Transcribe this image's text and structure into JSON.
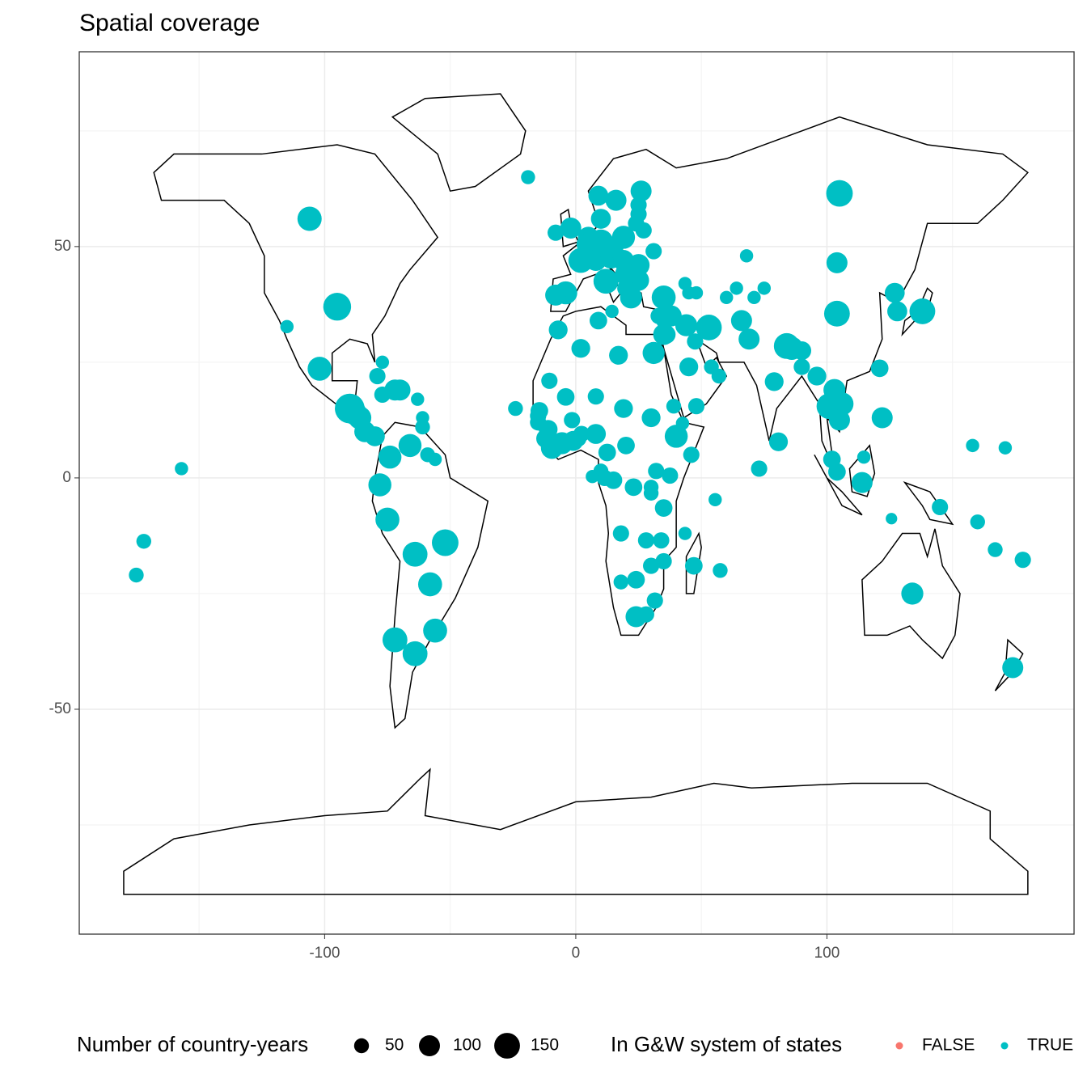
{
  "chart_data": {
    "type": "scatter",
    "title": "Spatial coverage",
    "xlim": [
      -197.7,
      198.4
    ],
    "ylim": [
      -98.6,
      92.1
    ],
    "xticks": [
      -100,
      0,
      100
    ],
    "yticks": [
      -50,
      0,
      50
    ],
    "grid": true,
    "size_legend": {
      "title": "Number of country-years",
      "values": [
        50,
        100,
        150
      ]
    },
    "color_legend": {
      "title": "In G&W system of states"
    },
    "series": [
      {
        "name": "FALSE",
        "color": "#F8766D",
        "x": [
          12
        ],
        "y": [
          48
        ],
        "size": [
          40
        ]
      },
      {
        "name": "TRUE",
        "color": "#00BFC4",
        "x": [
          -19,
          -106,
          -95,
          -102,
          -115,
          -157,
          -172,
          -175,
          -90,
          -86,
          -84,
          -80,
          -88,
          -79,
          -72,
          -70,
          -77,
          -77,
          -61,
          -63,
          -61,
          -74,
          -66,
          -59,
          -56,
          -78,
          -75,
          -64,
          -52,
          -58,
          -56,
          -72,
          -64,
          -2,
          -8,
          2,
          -4,
          -8,
          12,
          10,
          5,
          4.5,
          8,
          14,
          10,
          9,
          16,
          26,
          19,
          15,
          19,
          25,
          25,
          22,
          20,
          20,
          25,
          25,
          24,
          27,
          31,
          35,
          33,
          38,
          35.5,
          35,
          36,
          44,
          53,
          45,
          47.5,
          48,
          57,
          54,
          31,
          17,
          9,
          2,
          -7,
          14.4,
          43.5,
          45,
          48,
          68,
          60,
          64,
          71,
          75,
          66,
          69,
          79,
          84,
          86,
          90,
          90,
          96,
          80.7,
          73,
          101,
          103,
          106,
          105,
          102,
          104,
          114.7,
          114,
          122,
          121,
          104,
          104,
          105,
          127,
          128,
          138,
          145,
          125.7,
          160,
          167,
          178,
          174,
          134,
          158,
          171,
          57.5,
          47,
          43.5,
          55.5,
          -24,
          -14.5,
          -15,
          -15,
          -11,
          -12,
          -9.5,
          -5.5,
          -1,
          1,
          2.3,
          8,
          -4,
          -10.5,
          -1.5,
          8,
          19,
          30,
          40,
          39,
          42.5,
          46,
          20,
          12.5,
          10,
          11.5,
          15,
          23,
          32,
          37.5,
          30,
          30,
          35,
          18,
          28,
          34,
          35,
          30,
          24,
          18,
          24,
          28,
          31.5,
          6.6
        ],
        "y": [
          65,
          56,
          37,
          23.6,
          32.7,
          2,
          -13.7,
          -21,
          15,
          13,
          10,
          9,
          14,
          22,
          19,
          19,
          18,
          25,
          11,
          17,
          13,
          4.5,
          7,
          5,
          4,
          -1.5,
          -9,
          -16.5,
          -14,
          -23,
          -33,
          -35,
          -38,
          54,
          53,
          47,
          40,
          39.5,
          42.5,
          51,
          52,
          50.5,
          47,
          47.5,
          56,
          61,
          60,
          62,
          52,
          49.8,
          47,
          46,
          42.7,
          39,
          44,
          41,
          59,
          57,
          55,
          53.5,
          49,
          39,
          35,
          35,
          34,
          31,
          31,
          33,
          32.5,
          24,
          29.5,
          15.5,
          22,
          24,
          27,
          26.5,
          34,
          28,
          32,
          36,
          42,
          40,
          40,
          48,
          39,
          41,
          39,
          41,
          34,
          30,
          20.8,
          28.5,
          28,
          27.5,
          24,
          22,
          7.8,
          2,
          15.5,
          19,
          16,
          12.5,
          4,
          1.3,
          4.5,
          -1,
          13,
          23.7,
          35.5,
          46.5,
          61.5,
          40,
          36,
          36,
          -6.3,
          -8.8,
          -9.5,
          -15.5,
          -17.7,
          -41,
          -25,
          7,
          6.5,
          -20,
          -19,
          -12,
          -4.7,
          15,
          14.5,
          13.4,
          12,
          10.5,
          8.5,
          6.5,
          7.5,
          8,
          8.5,
          9.5,
          9.5,
          17.5,
          21,
          12.5,
          17.6,
          15,
          13,
          9,
          15.5,
          11.8,
          5,
          7,
          5.5,
          1.5,
          0,
          -0.5,
          -2,
          1.5,
          0.5,
          -2,
          -3.3,
          -6.5,
          -12,
          -13.5,
          -13.5,
          -18,
          -19,
          -22,
          -22.5,
          -30,
          -29.5,
          -26.5,
          0.3
        ],
        "size": [
          45,
          133,
          175,
          130,
          40,
          40,
          50,
          50,
          200,
          120,
          100,
          90,
          130,
          60,
          100,
          100,
          60,
          40,
          50,
          40,
          40,
          120,
          120,
          50,
          40,
          120,
          130,
          140,
          160,
          130,
          130,
          140,
          140,
          100,
          60,
          140,
          120,
          100,
          140,
          140,
          100,
          100,
          100,
          100,
          90,
          90,
          100,
          100,
          120,
          90,
          100,
          110,
          100,
          110,
          110,
          70,
          60,
          60,
          60,
          60,
          60,
          130,
          60,
          100,
          70,
          100,
          80,
          110,
          150,
          80,
          60,
          60,
          50,
          50,
          110,
          80,
          70,
          80,
          80,
          40,
          40,
          40,
          40,
          40,
          40,
          40,
          40,
          40,
          100,
          100,
          80,
          150,
          120,
          80,
          60,
          80,
          80,
          60,
          150,
          110,
          120,
          100,
          70,
          70,
          40,
          100,
          100,
          70,
          150,
          100,
          160,
          90,
          90,
          150,
          60,
          30,
          50,
          50,
          60,
          100,
          110,
          40,
          40,
          50,
          70,
          40,
          40,
          50,
          70,
          60,
          60,
          80,
          80,
          110,
          110,
          90,
          60,
          60,
          90,
          70,
          60,
          60,
          60,
          80,
          80,
          120,
          50,
          40,
          60,
          70,
          70,
          50,
          60,
          70,
          70,
          60,
          60,
          50,
          50,
          70,
          60,
          60,
          60,
          60,
          60,
          70,
          50,
          100,
          60,
          60,
          40
        ]
      }
    ]
  }
}
